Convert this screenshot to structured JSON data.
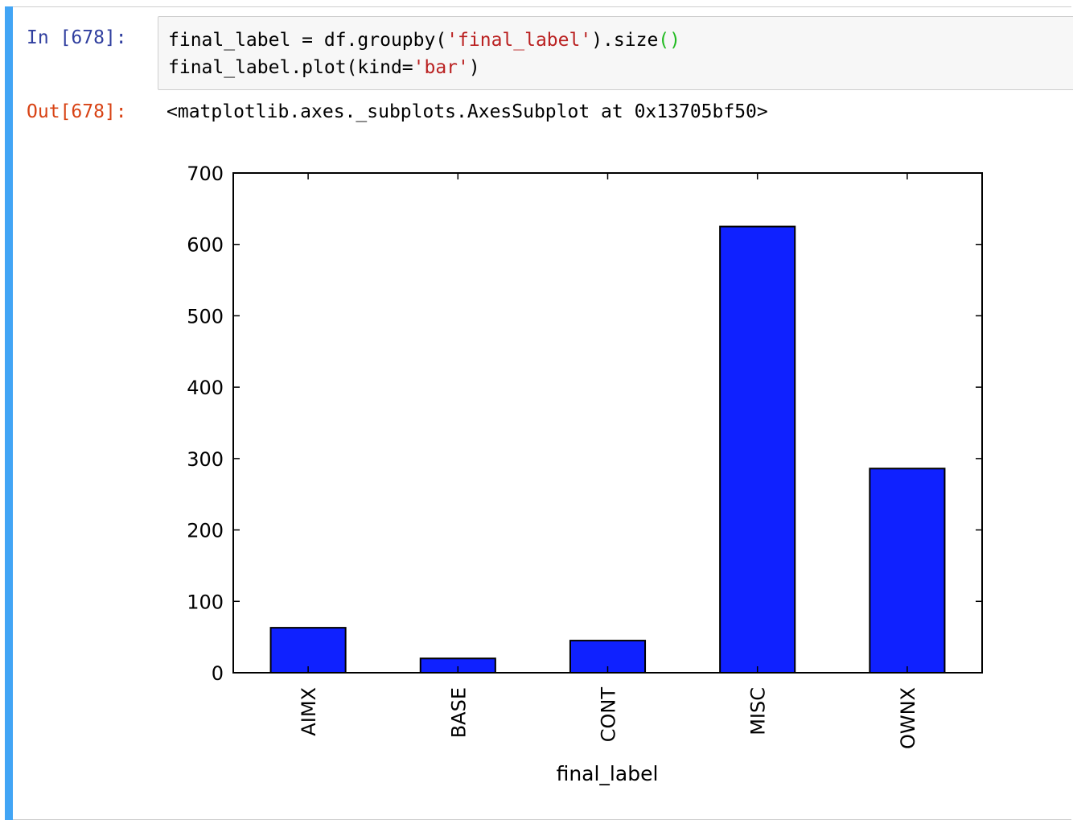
{
  "notebook": {
    "input_prompt": "In [678]:",
    "output_prompt": "Out[678]:",
    "code_lines": [
      [
        {
          "t": "final_label = df.groupby(",
          "c": "plain"
        },
        {
          "t": "'final_label'",
          "c": "str"
        },
        {
          "t": ").size",
          "c": "plain"
        },
        {
          "t": "()",
          "c": "paren"
        }
      ],
      [
        {
          "t": "final_label.plot(kind=",
          "c": "plain"
        },
        {
          "t": "'bar'",
          "c": "str"
        },
        {
          "t": ")",
          "c": "plain"
        }
      ]
    ],
    "output_text": "<matplotlib.axes._subplots.AxesSubplot at 0x13705bf50>",
    "colors": {
      "cell_selected_bar": "#42a5f5",
      "input_prompt": "#303f9f",
      "output_prompt": "#d84315",
      "string": "#ba2121",
      "paren": "#22bb22"
    }
  },
  "chart_data": {
    "type": "bar",
    "categories": [
      "AIMX",
      "BASE",
      "CONT",
      "MISC",
      "OWNX"
    ],
    "values": [
      63,
      20,
      45,
      625,
      286
    ],
    "xlabel": "final_label",
    "ylabel": "",
    "ylim": [
      0,
      700
    ],
    "yticks": [
      0,
      100,
      200,
      300,
      400,
      500,
      600,
      700
    ],
    "bar_color": "#0f21ff",
    "grid": false,
    "legend": "none"
  }
}
